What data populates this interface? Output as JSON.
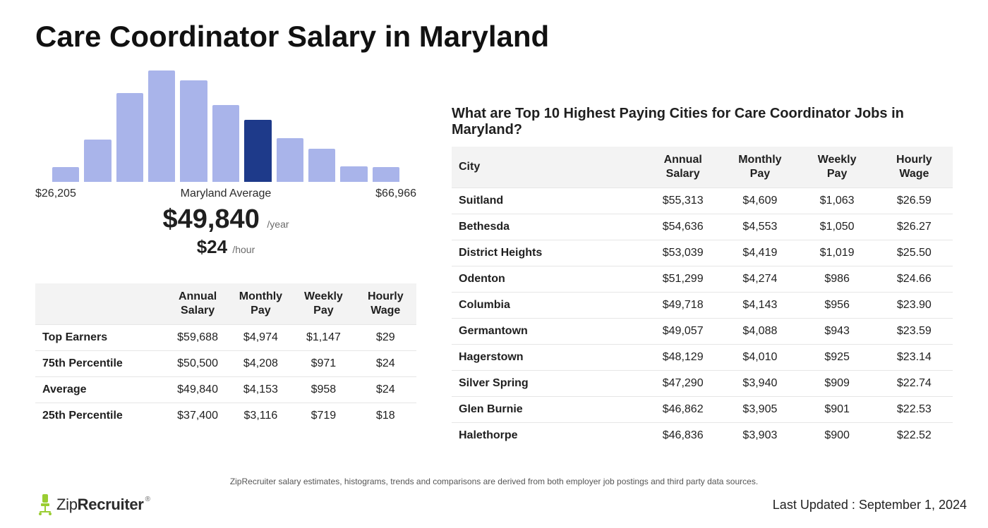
{
  "page_title": "Care Coordinator Salary in Maryland",
  "chart": {
    "type": "histogram",
    "bar_heights_pct": [
      13,
      38,
      80,
      100,
      91,
      69,
      56,
      39,
      30,
      14,
      13
    ],
    "highlight_index": 6,
    "bar_color": "#a9b4ea",
    "highlight_color": "#1e3a8a",
    "background_color": "#ffffff",
    "axis_left_label": "$26,205",
    "axis_center_label": "Maryland Average",
    "axis_right_label": "$66,966",
    "axis_label_fontsize": 16,
    "axis_label_color": "#2b2b2b",
    "yearly_value": "$49,840",
    "yearly_unit": "/year",
    "hourly_value": "$24",
    "hourly_unit": "/hour",
    "big_value_fontsize": 38,
    "hourly_value_fontsize": 26
  },
  "percentile_table": {
    "columns": [
      "",
      "Annual Salary",
      "Monthly Pay",
      "Weekly Pay",
      "Hourly Wage"
    ],
    "rows": [
      [
        "Top Earners",
        "$59,688",
        "$4,974",
        "$1,147",
        "$29"
      ],
      [
        "75th Percentile",
        "$50,500",
        "$4,208",
        "$971",
        "$24"
      ],
      [
        "Average",
        "$49,840",
        "$4,153",
        "$958",
        "$24"
      ],
      [
        "25th Percentile",
        "$37,400",
        "$3,116",
        "$719",
        "$18"
      ]
    ],
    "header_bg": "#f3f3f3",
    "row_border_color": "#e6e6e6"
  },
  "cities_heading": "What are Top 10 Highest Paying Cities for Care Coordinator Jobs in Maryland?",
  "cities_table": {
    "columns": [
      "City",
      "Annual Salary",
      "Monthly Pay",
      "Weekly Pay",
      "Hourly Wage"
    ],
    "rows": [
      [
        "Suitland",
        "$55,313",
        "$4,609",
        "$1,063",
        "$26.59"
      ],
      [
        "Bethesda",
        "$54,636",
        "$4,553",
        "$1,050",
        "$26.27"
      ],
      [
        "District Heights",
        "$53,039",
        "$4,419",
        "$1,019",
        "$25.50"
      ],
      [
        "Odenton",
        "$51,299",
        "$4,274",
        "$986",
        "$24.66"
      ],
      [
        "Columbia",
        "$49,718",
        "$4,143",
        "$956",
        "$23.90"
      ],
      [
        "Germantown",
        "$49,057",
        "$4,088",
        "$943",
        "$23.59"
      ],
      [
        "Hagerstown",
        "$48,129",
        "$4,010",
        "$925",
        "$23.14"
      ],
      [
        "Silver Spring",
        "$47,290",
        "$3,940",
        "$909",
        "$22.74"
      ],
      [
        "Glen Burnie",
        "$46,862",
        "$3,905",
        "$901",
        "$22.53"
      ],
      [
        "Halethorpe",
        "$46,836",
        "$3,903",
        "$900",
        "$22.52"
      ]
    ],
    "header_bg": "#f3f3f3",
    "row_border_color": "#e6e6e6"
  },
  "disclaimer": "ZipRecruiter salary estimates, histograms, trends and comparisons are derived from both employer job postings and third party data sources.",
  "logo": {
    "prefix": "Zip",
    "suffix": "Recruiter",
    "chair_color": "#9acd32"
  },
  "last_updated_label": "Last Updated : ",
  "last_updated_value": "September 1, 2024"
}
